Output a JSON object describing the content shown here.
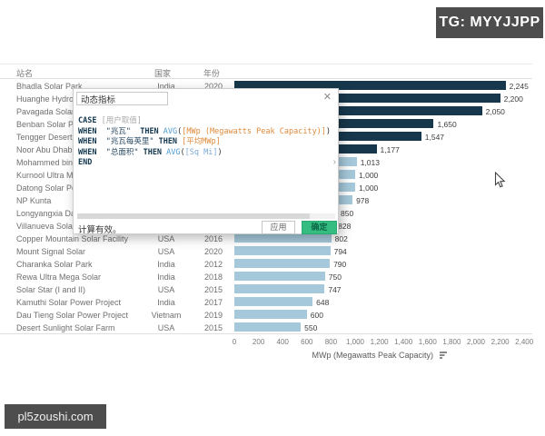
{
  "badge": {
    "label": "TG: MYYJJPP"
  },
  "watermark": {
    "label": "pl5zoushi.com"
  },
  "colors": {
    "bar_dark": "#17384c",
    "bar_light": "#a5c9da",
    "ok_button": "#35bd81"
  },
  "table": {
    "headers": {
      "name": "站名",
      "country": "国家",
      "year": "年份"
    },
    "rows": [
      {
        "name": "Bhadla Solar Park",
        "country": "India",
        "year": "2020",
        "value": 2245,
        "value_label": "2,245",
        "dark": true
      },
      {
        "name": "Huanghe Hydropowe",
        "country": "",
        "year": "",
        "value": 2200,
        "value_label": "2,200",
        "dark": true
      },
      {
        "name": "Pavagada Solar Park",
        "country": "",
        "year": "",
        "value": 2050,
        "value_label": "2,050",
        "dark": true
      },
      {
        "name": "Benban Solar Park",
        "country": "",
        "year": "",
        "value": 1650,
        "value_label": "1,650",
        "dark": true
      },
      {
        "name": "Tengger Desert Solar",
        "country": "",
        "year": "",
        "value": 1547,
        "value_label": "1,547",
        "dark": true
      },
      {
        "name": "Noor Abu Dhabi",
        "country": "",
        "year": "",
        "value": 1177,
        "value_label": "1,177",
        "dark": true
      },
      {
        "name": "Mohammed bin Rash",
        "country": "",
        "year": "",
        "value": 1013,
        "value_label": "1,013",
        "dark": false
      },
      {
        "name": "Kurnool Ultra Mega S",
        "country": "",
        "year": "",
        "value": 1000,
        "value_label": "1,000",
        "dark": false
      },
      {
        "name": "Datong Solar Power",
        "country": "",
        "year": "",
        "value": 1000,
        "value_label": "1,000",
        "dark": false
      },
      {
        "name": "NP Kunta",
        "country": "",
        "year": "",
        "value": 978,
        "value_label": "978",
        "dark": false
      },
      {
        "name": "Longyangxia Dam So",
        "country": "",
        "year": "",
        "value": 850,
        "value_label": "850",
        "dark": false
      },
      {
        "name": "Villanueva Solar Park",
        "country": "",
        "year": "",
        "value": 828,
        "value_label": "828",
        "dark": false
      },
      {
        "name": "Copper Mountain Solar Facility",
        "country": "USA",
        "year": "2016",
        "value": 802,
        "value_label": "802",
        "dark": false
      },
      {
        "name": "Mount Signal Solar",
        "country": "USA",
        "year": "2020",
        "value": 794,
        "value_label": "794",
        "dark": false
      },
      {
        "name": "Charanka Solar Park",
        "country": "India",
        "year": "2012",
        "value": 790,
        "value_label": "790",
        "dark": false
      },
      {
        "name": "Rewa Ultra Mega Solar",
        "country": "India",
        "year": "2018",
        "value": 750,
        "value_label": "750",
        "dark": false
      },
      {
        "name": "Solar Star (I and II)",
        "country": "USA",
        "year": "2015",
        "value": 747,
        "value_label": "747",
        "dark": false
      },
      {
        "name": "Kamuthi Solar Power Project",
        "country": "India",
        "year": "2017",
        "value": 648,
        "value_label": "648",
        "dark": false
      },
      {
        "name": "Dau Tieng Solar Power Project",
        "country": "Vietnam",
        "year": "2019",
        "value": 600,
        "value_label": "600",
        "dark": false
      },
      {
        "name": "Desert Sunlight Solar Farm",
        "country": "USA",
        "year": "2015",
        "value": 550,
        "value_label": "550",
        "dark": false
      }
    ]
  },
  "axis": {
    "ticks": [
      "0",
      "200",
      "400",
      "600",
      "800",
      "1,000",
      "1,200",
      "1,400",
      "1,600",
      "1,800",
      "2,000",
      "2,200",
      "2,400"
    ],
    "title": "MWp (Megawatts Peak Capacity)"
  },
  "dialog": {
    "title": "动态指标",
    "close_glyph": "✕",
    "expand_glyph": "›",
    "formula": [
      [
        {
          "text": "CASE ",
          "type": "keyword"
        },
        {
          "text": "[用户取值]",
          "type": "param"
        }
      ],
      [
        {
          "text": "WHEN  ",
          "type": "keyword"
        },
        {
          "text": "\"兆瓦\"  ",
          "type": "string"
        },
        {
          "text": "THEN ",
          "type": "keyword"
        },
        {
          "text": "AVG",
          "type": "func"
        },
        {
          "text": "(",
          "type": "plain"
        },
        {
          "text": "[MWp (Megawatts Peak Capacity)]",
          "type": "field"
        },
        {
          "text": ")",
          "type": "plain"
        }
      ],
      [
        {
          "text": "WHEN  ",
          "type": "keyword"
        },
        {
          "text": "\"兆瓦每英里\" ",
          "type": "string"
        },
        {
          "text": "THEN ",
          "type": "keyword"
        },
        {
          "text": "[平均MWp]",
          "type": "field"
        }
      ],
      [
        {
          "text": "WHEN  ",
          "type": "keyword"
        },
        {
          "text": "\"总面积\" ",
          "type": "string"
        },
        {
          "text": "THEN ",
          "type": "keyword"
        },
        {
          "text": "AVG",
          "type": "func"
        },
        {
          "text": "(",
          "type": "plain"
        },
        {
          "text": "[Sq Mi]",
          "type": "fieldblue"
        },
        {
          "text": ")",
          "type": "plain"
        }
      ],
      [
        {
          "text": "END",
          "type": "keyword"
        }
      ]
    ],
    "status": "计算有效。",
    "apply_label": "应用",
    "ok_label": "确定"
  },
  "chart_data": {
    "type": "bar",
    "orientation": "horizontal",
    "categories": [
      "Bhadla Solar Park",
      "Huanghe Hydropowe",
      "Pavagada Solar Park",
      "Benban Solar Park",
      "Tengger Desert Solar",
      "Noor Abu Dhabi",
      "Mohammed bin Rash",
      "Kurnool Ultra Mega S",
      "Datong Solar Power",
      "NP Kunta",
      "Longyangxia Dam So",
      "Villanueva Solar Park",
      "Copper Mountain Solar Facility",
      "Mount Signal Solar",
      "Charanka Solar Park",
      "Rewa Ultra Mega Solar",
      "Solar Star (I and II)",
      "Kamuthi Solar Power Project",
      "Dau Tieng Solar Power Project",
      "Desert Sunlight Solar Farm"
    ],
    "values": [
      2245,
      2200,
      2050,
      1650,
      1547,
      1177,
      1013,
      1000,
      1000,
      978,
      850,
      828,
      802,
      794,
      790,
      750,
      747,
      648,
      600,
      550
    ],
    "title": "",
    "xlabel": "MWp (Megawatts Peak Capacity)",
    "ylabel": "站名",
    "xlim": [
      0,
      2400
    ],
    "grid": false,
    "legend": false
  }
}
